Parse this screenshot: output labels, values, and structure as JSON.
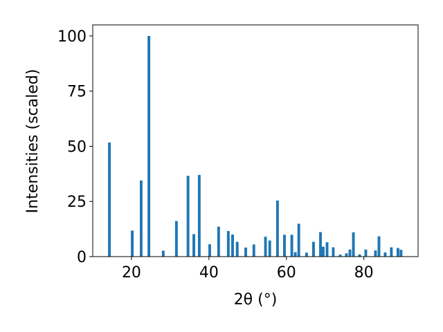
{
  "chart_data": {
    "type": "bar",
    "xlabel": "2θ (°)",
    "ylabel": "Intensities (scaled)",
    "color": "#1f77b4",
    "bar_width": 0.7,
    "x": [
      14.3,
      20.2,
      22.5,
      24.5,
      28.2,
      31.6,
      34.6,
      36.1,
      37.5,
      40.2,
      42.5,
      45.0,
      46.1,
      47.3,
      49.5,
      51.6,
      54.6,
      55.7,
      57.7,
      59.5,
      61.4,
      62.3,
      63.2,
      65.2,
      67.0,
      68.8,
      69.5,
      70.5,
      72.1,
      73.9,
      75.5,
      76.4,
      77.3,
      78.9,
      80.5,
      83.0,
      83.9,
      85.5,
      87.1,
      88.8,
      89.6
    ],
    "values": [
      51.7,
      11.8,
      34.5,
      100,
      2.7,
      16.1,
      36.6,
      10.2,
      37,
      5.6,
      13.6,
      11.6,
      10.0,
      6.7,
      4.1,
      5.5,
      9.0,
      7.3,
      25.4,
      9.9,
      9.9,
      2.0,
      14.9,
      1.8,
      6.7,
      11.1,
      4.5,
      6.5,
      4.2,
      0.9,
      1.5,
      3.2,
      11.0,
      1.0,
      3.2,
      2.8,
      9.2,
      1.9,
      4.2,
      3.9,
      3.1
    ],
    "xlim": [
      10,
      94
    ],
    "ylim": [
      0,
      105
    ],
    "xticks": [
      20,
      40,
      60,
      80
    ],
    "yticks": [
      0,
      25,
      50,
      75,
      100
    ]
  }
}
